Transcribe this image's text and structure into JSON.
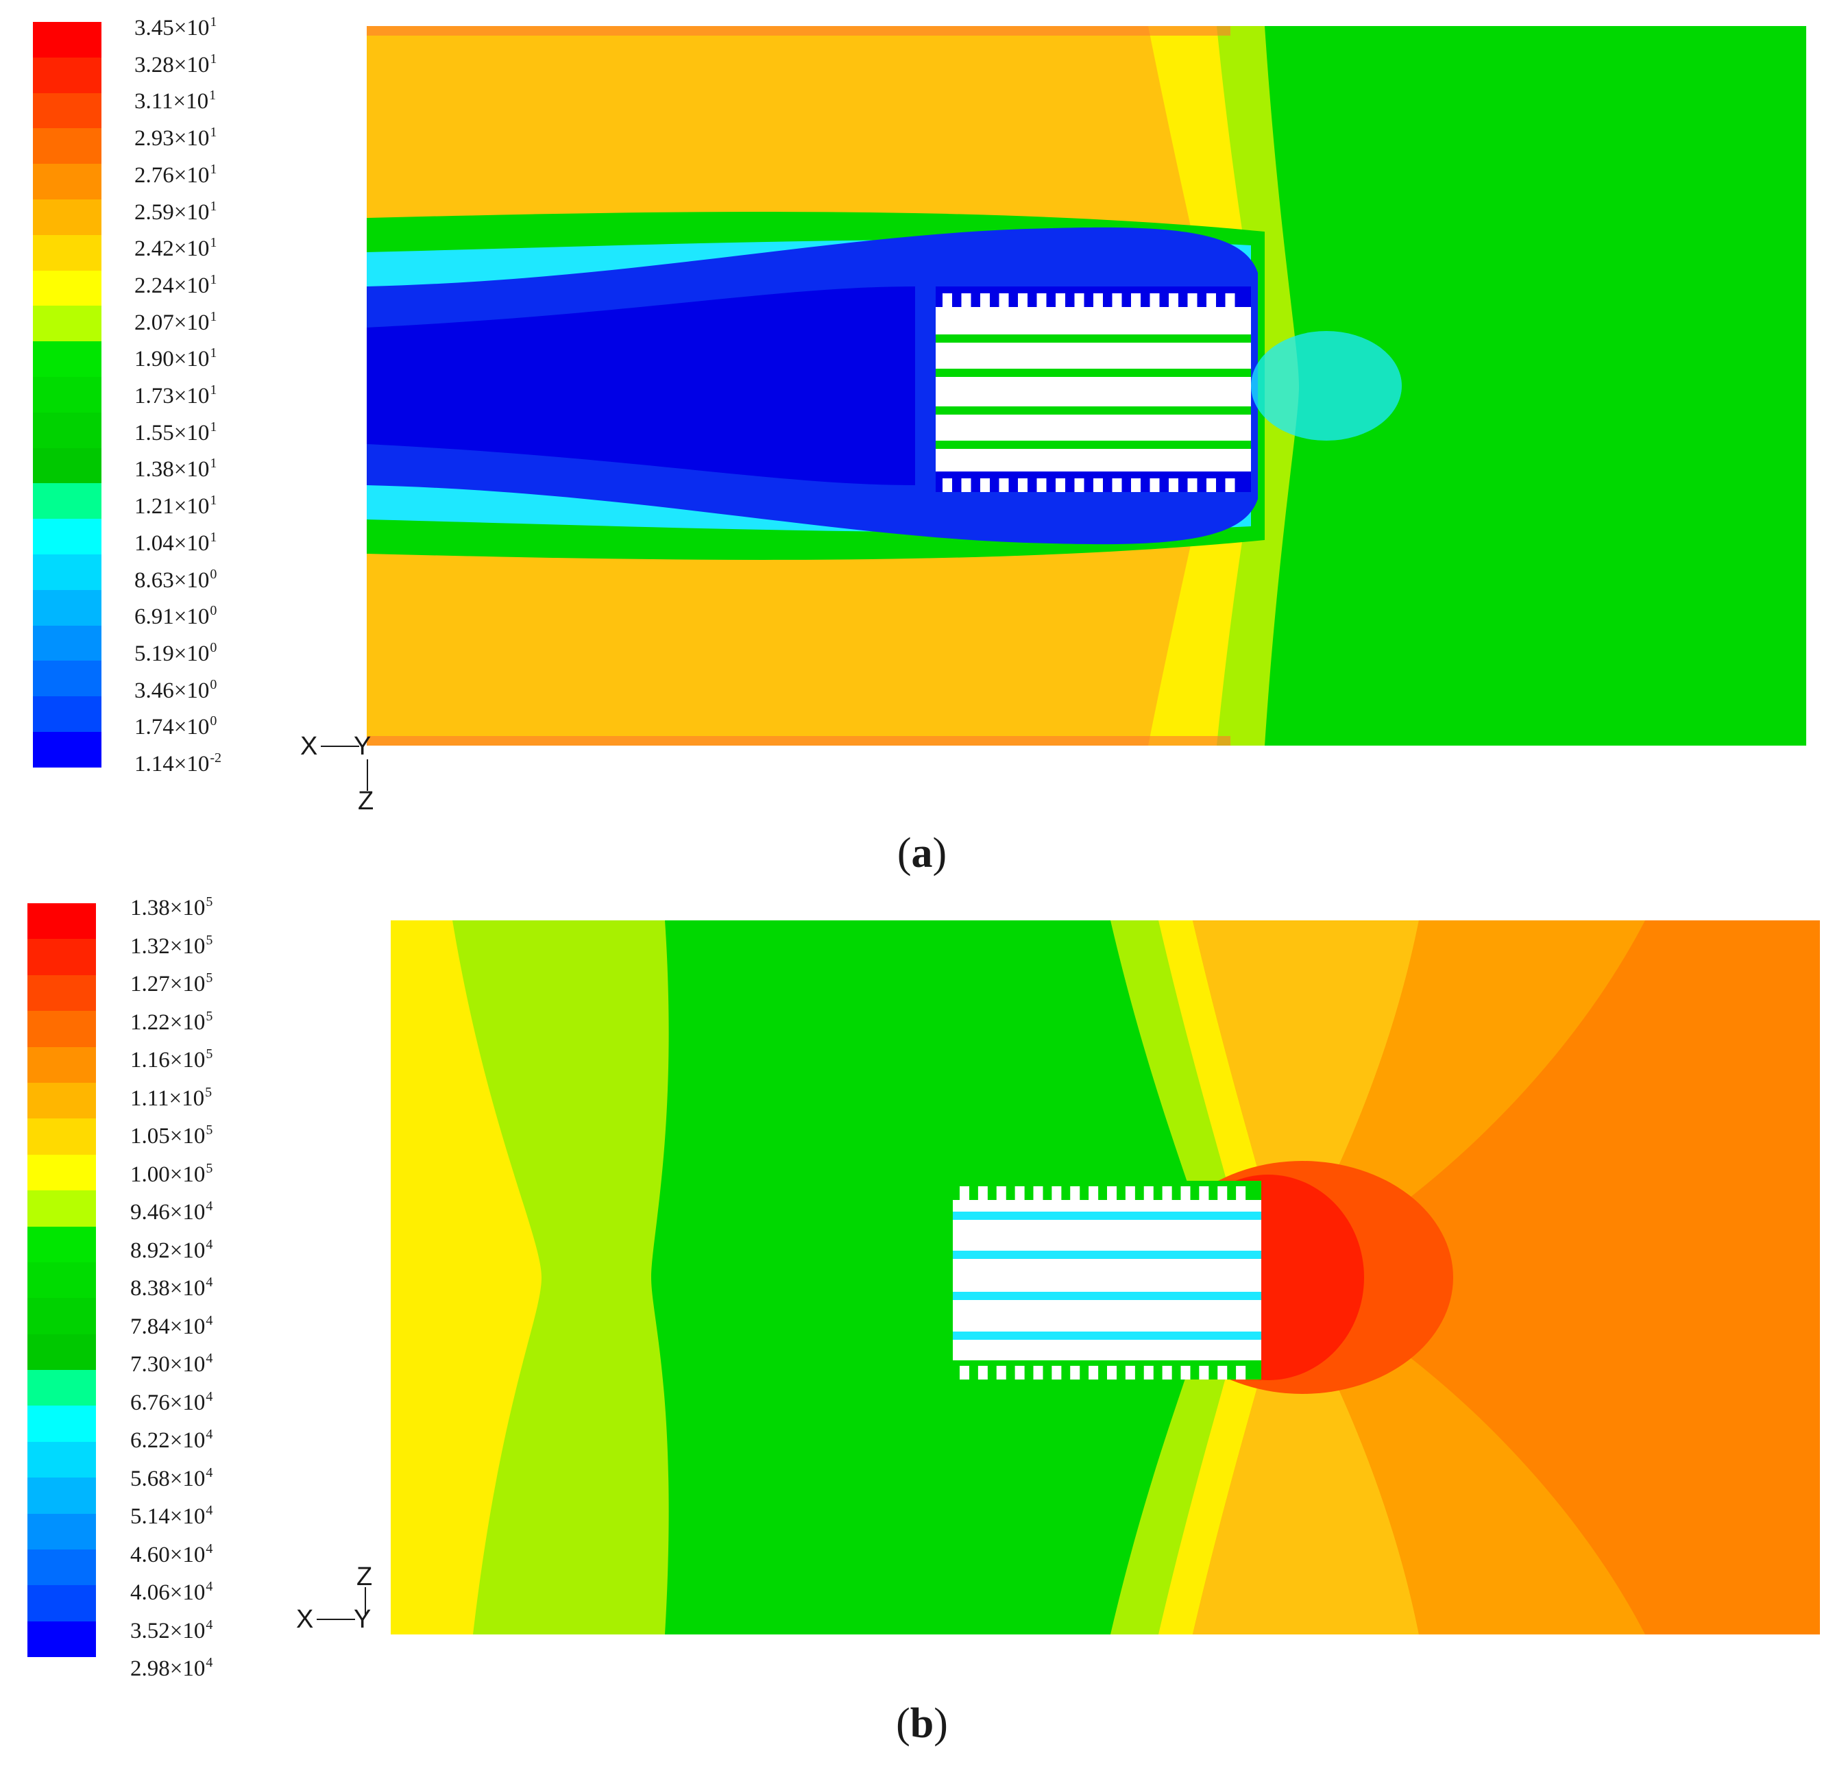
{
  "panel_a": {
    "caption_open": "(",
    "caption_letter": "a",
    "caption_close": ")",
    "legend_labels": [
      {
        "m": "3.45",
        "e": "1"
      },
      {
        "m": "3.28",
        "e": "1"
      },
      {
        "m": "3.11",
        "e": "1"
      },
      {
        "m": "2.93",
        "e": "1"
      },
      {
        "m": "2.76",
        "e": "1"
      },
      {
        "m": "2.59",
        "e": "1"
      },
      {
        "m": "2.42",
        "e": "1"
      },
      {
        "m": "2.24",
        "e": "1"
      },
      {
        "m": "2.07",
        "e": "1"
      },
      {
        "m": "1.90",
        "e": "1"
      },
      {
        "m": "1.73",
        "e": "1"
      },
      {
        "m": "1.55",
        "e": "1"
      },
      {
        "m": "1.38",
        "e": "1"
      },
      {
        "m": "1.21",
        "e": "1"
      },
      {
        "m": "1.04",
        "e": "1"
      },
      {
        "m": "8.63",
        "e": "0"
      },
      {
        "m": "6.91",
        "e": "0"
      },
      {
        "m": "5.19",
        "e": "0"
      },
      {
        "m": "3.46",
        "e": "0"
      },
      {
        "m": "1.74",
        "e": "0"
      },
      {
        "m": "1.14",
        "e": "-2"
      }
    ],
    "axis_x": "X",
    "axis_y": "Y",
    "axis_z": "Z"
  },
  "panel_b": {
    "caption_open": "(",
    "caption_letter": "b",
    "caption_close": ")",
    "legend_labels": [
      {
        "m": "1.38",
        "e": "5"
      },
      {
        "m": "1.32",
        "e": "5"
      },
      {
        "m": "1.27",
        "e": "5"
      },
      {
        "m": "1.22",
        "e": "5"
      },
      {
        "m": "1.16",
        "e": "5"
      },
      {
        "m": "1.11",
        "e": "5"
      },
      {
        "m": "1.05",
        "e": "5"
      },
      {
        "m": "1.00",
        "e": "5"
      },
      {
        "m": "9.46",
        "e": "4"
      },
      {
        "m": "8.92",
        "e": "4"
      },
      {
        "m": "8.38",
        "e": "4"
      },
      {
        "m": "7.84",
        "e": "4"
      },
      {
        "m": "7.30",
        "e": "4"
      },
      {
        "m": "6.76",
        "e": "4"
      },
      {
        "m": "6.22",
        "e": "4"
      },
      {
        "m": "5.68",
        "e": "4"
      },
      {
        "m": "5.14",
        "e": "4"
      },
      {
        "m": "4.60",
        "e": "4"
      },
      {
        "m": "4.06",
        "e": "4"
      },
      {
        "m": "3.52",
        "e": "4"
      },
      {
        "m": "2.98",
        "e": "4"
      }
    ],
    "axis_x": "X",
    "axis_y": "Y",
    "axis_z": "Z"
  },
  "times_sign": "×10",
  "legend_colors": [
    "#ff0000",
    "#ff2400",
    "#ff4800",
    "#ff6d00",
    "#ff9100",
    "#ffb600",
    "#ffda00",
    "#ffff00",
    "#b6ff00",
    "#00e600",
    "#00dc00",
    "#00d200",
    "#00c800",
    "#00ff90",
    "#00ffff",
    "#00daff",
    "#00b6ff",
    "#0091ff",
    "#006dff",
    "#0048ff",
    "#0000ff"
  ],
  "field_colors": {
    "orange": "#ffc20e",
    "yellow": "#ffef00",
    "lime": "#a8f000",
    "green": "#00d800",
    "cyan": "#1ee8ff",
    "blue": "#0a2cf0",
    "navy": "#0000e6",
    "red": "#ff2000",
    "red_orange": "#ff5200",
    "deep_orange": "#ff8400"
  }
}
